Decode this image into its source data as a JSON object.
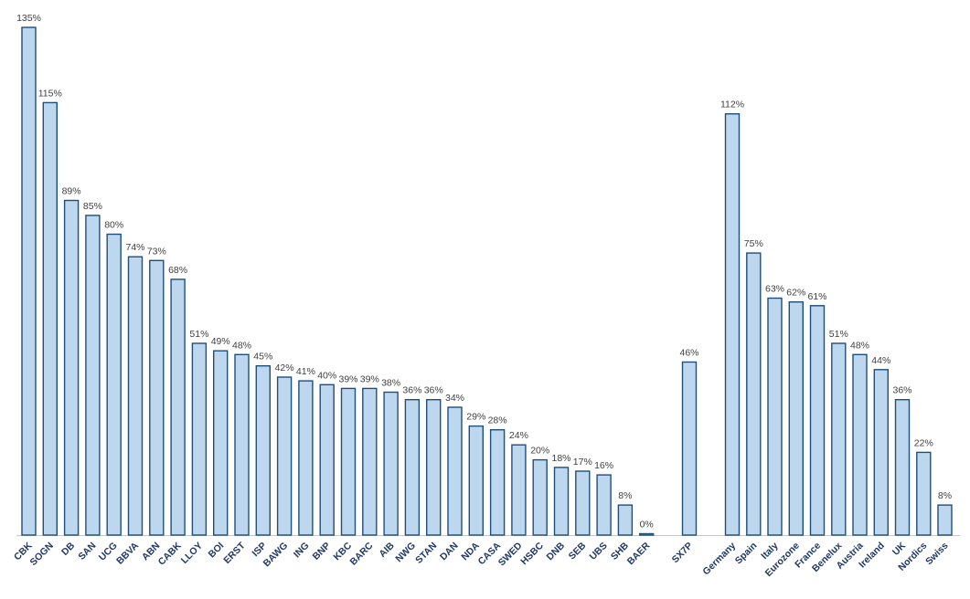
{
  "chart_data": {
    "type": "bar",
    "categories": [
      "CBK",
      "SOGN",
      "DB",
      "SAN",
      "UCG",
      "BBVA",
      "ABN",
      "CABK",
      "LLOY",
      "BOI",
      "ERST",
      "ISP",
      "BAWG",
      "ING",
      "BNP",
      "KBC",
      "BARC",
      "AIB",
      "NWG",
      "STAN",
      "DAN",
      "NDA",
      "CASA",
      "SWED",
      "HSBC",
      "DNB",
      "SEB",
      "UBS",
      "SHB",
      "BAER",
      "SX7P",
      "Germany",
      "Spain",
      "Italy",
      "Eurozone",
      "France",
      "Benelux",
      "Austria",
      "Ireland",
      "UK",
      "Nordics",
      "Swiss"
    ],
    "values": [
      135,
      115,
      89,
      85,
      80,
      74,
      73,
      68,
      51,
      49,
      48,
      45,
      42,
      41,
      40,
      39,
      39,
      38,
      36,
      36,
      34,
      29,
      28,
      24,
      20,
      18,
      17,
      16,
      8,
      0,
      46,
      112,
      75,
      63,
      62,
      61,
      51,
      48,
      44,
      36,
      22,
      8
    ],
    "data_labels": [
      "135%",
      "115%",
      "89%",
      "85%",
      "80%",
      "74%",
      "73%",
      "68%",
      "51%",
      "49%",
      "48%",
      "45%",
      "42%",
      "41%",
      "40%",
      "39%",
      "39%",
      "38%",
      "36%",
      "36%",
      "34%",
      "29%",
      "28%",
      "24%",
      "20%",
      "18%",
      "17%",
      "16%",
      "8%",
      "0%",
      "46%",
      "112%",
      "75%",
      "63%",
      "62%",
      "61%",
      "51%",
      "48%",
      "44%",
      "36%",
      "22%",
      "8%"
    ],
    "groups": [
      {
        "start": 0,
        "count": 30
      },
      {
        "start": 30,
        "count": 1
      },
      {
        "start": 31,
        "count": 11
      }
    ],
    "title": "",
    "xlabel": "",
    "ylabel": "",
    "ylim": [
      0,
      135
    ],
    "grid": false,
    "legend": "none",
    "colors": {
      "bar_fill": "#bdd7ee",
      "bar_stroke": "#1f4e79",
      "tick_label": "#1f3864",
      "data_label": "#404040"
    }
  }
}
